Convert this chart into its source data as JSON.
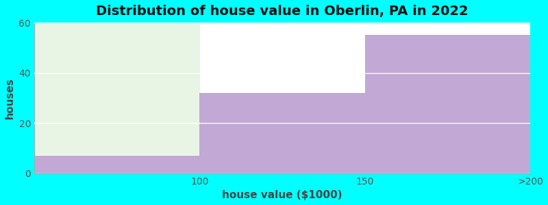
{
  "title": "Distribution of house value in Oberlin, PA in 2022",
  "xlabel": "house value ($1000)",
  "ylabel": "houses",
  "xtick_labels": [
    "100",
    "150",
    ">200"
  ],
  "values": [
    7,
    32,
    55
  ],
  "bar_color": "#c2a8d4",
  "bg_color_outer": "#00ffff",
  "bg_color_plot": "#ffffff",
  "green_bg_color": "#e8f5e4",
  "ylim": [
    0,
    60
  ],
  "xlim": [
    0,
    3
  ],
  "yticks": [
    0,
    20,
    40,
    60
  ],
  "title_fontsize": 14,
  "label_fontsize": 11,
  "tick_fontsize": 10
}
